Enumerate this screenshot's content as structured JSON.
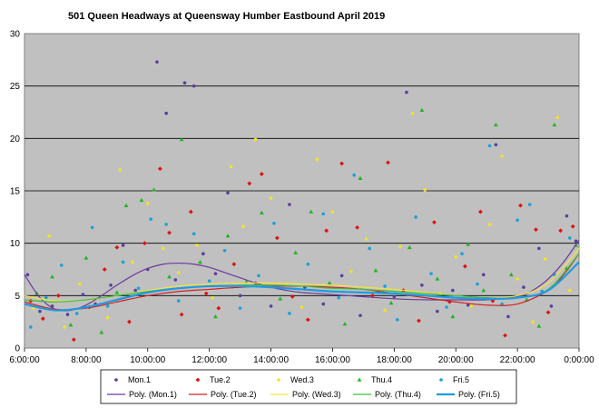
{
  "chart_data": {
    "type": "scatter",
    "title": "501 Queen Headways  at Queensway  Humber  Eastbound  April  2019",
    "xlabel": "",
    "ylabel": "",
    "x_range_hours": [
      6,
      24
    ],
    "x_ticks": [
      "6:00:00",
      "8:00:00",
      "10:00:00",
      "12:00:00",
      "14:00:00",
      "16:00:00",
      "18:00:00",
      "20:00:00",
      "22:00:00",
      "0:00:00"
    ],
    "ylim": [
      0,
      30
    ],
    "y_ticks": [
      0,
      5,
      10,
      15,
      20,
      25,
      30
    ],
    "grid": "horizontal",
    "plot_background": "#c0c0c0",
    "legend_position": "bottom",
    "series": [
      {
        "name": "Mon.1",
        "color": "#5b3d9c",
        "marker": "dot",
        "points": [
          [
            6.1,
            7.0
          ],
          [
            6.5,
            3.5
          ],
          [
            6.9,
            4.0
          ],
          [
            7.4,
            3.2
          ],
          [
            7.9,
            5.1
          ],
          [
            8.3,
            4.2
          ],
          [
            8.8,
            6.0
          ],
          [
            9.2,
            9.8
          ],
          [
            9.6,
            5.5
          ],
          [
            10.0,
            7.5
          ],
          [
            10.3,
            27.3
          ],
          [
            10.6,
            22.4
          ],
          [
            10.9,
            6.5
          ],
          [
            11.2,
            25.3
          ],
          [
            11.5,
            25.0
          ],
          [
            11.8,
            9.0
          ],
          [
            12.2,
            7.1
          ],
          [
            12.6,
            14.8
          ],
          [
            13.0,
            5.0
          ],
          [
            13.5,
            6.2
          ],
          [
            14.0,
            4.0
          ],
          [
            14.6,
            13.7
          ],
          [
            15.1,
            5.8
          ],
          [
            15.7,
            4.2
          ],
          [
            16.3,
            6.9
          ],
          [
            16.9,
            3.1
          ],
          [
            17.5,
            5.3
          ],
          [
            18.0,
            4.9
          ],
          [
            18.4,
            24.4
          ],
          [
            18.9,
            6.0
          ],
          [
            19.4,
            3.5
          ],
          [
            19.9,
            5.5
          ],
          [
            20.4,
            4.1
          ],
          [
            20.9,
            7.0
          ],
          [
            21.3,
            19.4
          ],
          [
            21.7,
            3.0
          ],
          [
            22.2,
            5.8
          ],
          [
            22.7,
            9.5
          ],
          [
            23.1,
            4.0
          ],
          [
            23.6,
            12.6
          ],
          [
            23.9,
            10.2
          ]
        ]
      },
      {
        "name": "Tue.2",
        "color": "#e01010",
        "marker": "diamond",
        "points": [
          [
            6.2,
            4.5
          ],
          [
            6.6,
            2.8
          ],
          [
            7.1,
            5.0
          ],
          [
            7.6,
            0.8
          ],
          [
            8.1,
            3.9
          ],
          [
            8.6,
            7.5
          ],
          [
            9.0,
            9.6
          ],
          [
            9.4,
            2.5
          ],
          [
            9.9,
            10.0
          ],
          [
            10.4,
            17.1
          ],
          [
            10.7,
            11.0
          ],
          [
            11.1,
            3.2
          ],
          [
            11.4,
            13.0
          ],
          [
            11.9,
            5.2
          ],
          [
            12.3,
            3.8
          ],
          [
            12.8,
            8.0
          ],
          [
            13.3,
            15.7
          ],
          [
            13.7,
            16.6
          ],
          [
            14.2,
            10.5
          ],
          [
            14.7,
            4.9
          ],
          [
            15.2,
            2.7
          ],
          [
            15.8,
            11.2
          ],
          [
            16.3,
            17.6
          ],
          [
            16.8,
            11.5
          ],
          [
            17.3,
            5.0
          ],
          [
            17.8,
            17.7
          ],
          [
            18.3,
            5.5
          ],
          [
            18.8,
            2.6
          ],
          [
            19.3,
            12.0
          ],
          [
            19.8,
            4.4
          ],
          [
            20.3,
            7.8
          ],
          [
            20.8,
            13.0
          ],
          [
            21.2,
            4.5
          ],
          [
            21.6,
            1.2
          ],
          [
            22.1,
            13.6
          ],
          [
            22.6,
            11.3
          ],
          [
            23.0,
            3.4
          ],
          [
            23.4,
            11.2
          ],
          [
            23.8,
            11.6
          ]
        ]
      },
      {
        "name": "Wed.3",
        "color": "#f2e22a",
        "marker": "dot",
        "points": [
          [
            6.3,
            3.8
          ],
          [
            6.8,
            10.7
          ],
          [
            7.3,
            2.0
          ],
          [
            7.8,
            6.1
          ],
          [
            8.2,
            4.6
          ],
          [
            8.7,
            2.9
          ],
          [
            9.1,
            17.0
          ],
          [
            9.5,
            8.2
          ],
          [
            10.0,
            13.8
          ],
          [
            10.5,
            9.5
          ],
          [
            11.0,
            7.2
          ],
          [
            11.6,
            9.8
          ],
          [
            12.1,
            4.8
          ],
          [
            12.7,
            17.3
          ],
          [
            13.1,
            11.6
          ],
          [
            13.5,
            19.9
          ],
          [
            14.0,
            14.3
          ],
          [
            14.5,
            6.0
          ],
          [
            15.0,
            3.9
          ],
          [
            15.5,
            18.0
          ],
          [
            16.0,
            13.0
          ],
          [
            16.6,
            7.3
          ],
          [
            17.1,
            10.4
          ],
          [
            17.7,
            3.6
          ],
          [
            18.2,
            9.7
          ],
          [
            18.6,
            22.4
          ],
          [
            19.0,
            15.1
          ],
          [
            19.5,
            5.2
          ],
          [
            20.0,
            8.7
          ],
          [
            20.5,
            4.0
          ],
          [
            21.1,
            11.8
          ],
          [
            21.5,
            18.3
          ],
          [
            22.0,
            6.6
          ],
          [
            22.5,
            2.5
          ],
          [
            22.9,
            8.5
          ],
          [
            23.3,
            22.0
          ],
          [
            23.7,
            5.5
          ]
        ]
      },
      {
        "name": "Thu.4",
        "color": "#22b422",
        "marker": "triangle",
        "points": [
          [
            6.4,
            5.2
          ],
          [
            6.9,
            6.8
          ],
          [
            7.5,
            2.2
          ],
          [
            8.0,
            8.6
          ],
          [
            8.5,
            1.5
          ],
          [
            9.0,
            5.3
          ],
          [
            9.3,
            13.6
          ],
          [
            9.8,
            14.1
          ],
          [
            10.2,
            15.1
          ],
          [
            10.7,
            6.8
          ],
          [
            11.1,
            19.9
          ],
          [
            11.7,
            8.2
          ],
          [
            12.2,
            3.0
          ],
          [
            12.6,
            10.7
          ],
          [
            13.2,
            6.3
          ],
          [
            13.7,
            12.9
          ],
          [
            14.3,
            4.7
          ],
          [
            14.8,
            9.1
          ],
          [
            15.3,
            13.0
          ],
          [
            15.9,
            6.2
          ],
          [
            16.4,
            2.3
          ],
          [
            16.9,
            16.2
          ],
          [
            17.4,
            7.4
          ],
          [
            17.9,
            4.3
          ],
          [
            18.5,
            9.6
          ],
          [
            18.9,
            22.7
          ],
          [
            19.4,
            6.6
          ],
          [
            19.9,
            3.0
          ],
          [
            20.4,
            9.9
          ],
          [
            20.9,
            5.5
          ],
          [
            21.3,
            21.3
          ],
          [
            21.8,
            7.0
          ],
          [
            22.3,
            4.6
          ],
          [
            22.7,
            2.1
          ],
          [
            23.2,
            21.3
          ],
          [
            23.6,
            7.6
          ],
          [
            23.9,
            9.8
          ]
        ]
      },
      {
        "name": "Fri.5",
        "color": "#1ca0d8",
        "marker": "dot",
        "points": [
          [
            6.2,
            2.0
          ],
          [
            6.7,
            4.8
          ],
          [
            7.2,
            7.9
          ],
          [
            7.7,
            3.3
          ],
          [
            8.2,
            11.5
          ],
          [
            8.7,
            4.0
          ],
          [
            9.2,
            8.2
          ],
          [
            9.7,
            5.7
          ],
          [
            10.1,
            12.3
          ],
          [
            10.6,
            11.8
          ],
          [
            11.0,
            4.5
          ],
          [
            11.5,
            10.9
          ],
          [
            12.0,
            6.4
          ],
          [
            12.5,
            9.3
          ],
          [
            13.0,
            3.8
          ],
          [
            13.6,
            6.9
          ],
          [
            14.1,
            11.9
          ],
          [
            14.6,
            3.3
          ],
          [
            15.2,
            8.0
          ],
          [
            15.7,
            12.8
          ],
          [
            16.2,
            4.8
          ],
          [
            16.7,
            16.5
          ],
          [
            17.2,
            9.5
          ],
          [
            17.7,
            5.9
          ],
          [
            18.1,
            2.7
          ],
          [
            18.7,
            12.5
          ],
          [
            19.2,
            7.1
          ],
          [
            19.7,
            3.9
          ],
          [
            20.2,
            9.0
          ],
          [
            20.7,
            6.1
          ],
          [
            21.1,
            19.3
          ],
          [
            21.5,
            4.2
          ],
          [
            22.0,
            12.2
          ],
          [
            22.4,
            13.7
          ],
          [
            22.8,
            5.4
          ],
          [
            23.2,
            7.0
          ],
          [
            23.7,
            10.5
          ]
        ]
      }
    ],
    "trendlines": [
      {
        "name": "Poly. (Mon.1)",
        "color": "#6a3aa0",
        "width": 1.2,
        "points": [
          [
            6.0,
            7.0
          ],
          [
            6.5,
            4.8
          ],
          [
            7.0,
            3.7
          ],
          [
            7.5,
            3.6
          ],
          [
            8.0,
            4.1
          ],
          [
            8.5,
            5.0
          ],
          [
            9.0,
            6.0
          ],
          [
            9.5,
            6.9
          ],
          [
            10.0,
            7.6
          ],
          [
            10.5,
            8.0
          ],
          [
            11.0,
            8.1
          ],
          [
            11.5,
            8.0
          ],
          [
            12.0,
            7.7
          ],
          [
            12.5,
            7.2
          ],
          [
            13.0,
            6.7
          ],
          [
            13.5,
            6.2
          ],
          [
            14.0,
            5.8
          ],
          [
            14.5,
            5.5
          ],
          [
            15.0,
            5.3
          ],
          [
            15.5,
            5.2
          ],
          [
            16.0,
            5.1
          ],
          [
            17.0,
            4.9
          ],
          [
            18.0,
            4.7
          ],
          [
            19.0,
            4.6
          ],
          [
            20.0,
            4.6
          ],
          [
            21.0,
            4.6
          ],
          [
            22.0,
            4.9
          ],
          [
            22.5,
            5.5
          ],
          [
            23.0,
            6.6
          ],
          [
            23.5,
            8.2
          ],
          [
            24.0,
            10.3
          ]
        ]
      },
      {
        "name": "Poly. (Tue.2)",
        "color": "#d42020",
        "width": 1.2,
        "points": [
          [
            6.0,
            4.4
          ],
          [
            7.0,
            3.7
          ],
          [
            8.0,
            3.8
          ],
          [
            9.0,
            4.4
          ],
          [
            10.0,
            5.0
          ],
          [
            11.0,
            5.4
          ],
          [
            12.0,
            5.6
          ],
          [
            13.0,
            5.8
          ],
          [
            14.0,
            5.9
          ],
          [
            15.0,
            5.9
          ],
          [
            16.0,
            5.8
          ],
          [
            17.0,
            5.6
          ],
          [
            18.0,
            5.2
          ],
          [
            19.0,
            4.8
          ],
          [
            20.0,
            4.4
          ],
          [
            21.0,
            4.1
          ],
          [
            22.0,
            4.2
          ],
          [
            23.0,
            5.5
          ],
          [
            23.5,
            7.0
          ],
          [
            24.0,
            9.0
          ]
        ]
      },
      {
        "name": "Poly. (Wed.3)",
        "color": "#f5e43a",
        "width": 1.2,
        "points": [
          [
            6.0,
            5.0
          ],
          [
            7.0,
            4.5
          ],
          [
            8.0,
            4.6
          ],
          [
            9.0,
            5.0
          ],
          [
            10.0,
            5.5
          ],
          [
            11.0,
            5.9
          ],
          [
            12.0,
            6.1
          ],
          [
            13.0,
            6.2
          ],
          [
            14.0,
            6.2
          ],
          [
            15.0,
            6.1
          ],
          [
            16.0,
            6.0
          ],
          [
            17.0,
            5.8
          ],
          [
            18.0,
            5.6
          ],
          [
            19.0,
            5.3
          ],
          [
            20.0,
            5.0
          ],
          [
            21.0,
            4.8
          ],
          [
            22.0,
            5.0
          ],
          [
            23.0,
            6.2
          ],
          [
            24.0,
            9.5
          ]
        ]
      },
      {
        "name": "Poly. (Thu.4)",
        "color": "#3cc03c",
        "width": 1.2,
        "points": [
          [
            6.0,
            4.6
          ],
          [
            7.0,
            4.4
          ],
          [
            8.0,
            4.6
          ],
          [
            9.0,
            5.0
          ],
          [
            10.0,
            5.4
          ],
          [
            11.0,
            5.7
          ],
          [
            12.0,
            5.9
          ],
          [
            13.0,
            6.0
          ],
          [
            14.0,
            6.0
          ],
          [
            15.0,
            5.9
          ],
          [
            16.0,
            5.7
          ],
          [
            17.0,
            5.6
          ],
          [
            18.0,
            5.4
          ],
          [
            19.0,
            5.2
          ],
          [
            20.0,
            5.0
          ],
          [
            21.0,
            4.8
          ],
          [
            22.0,
            4.8
          ],
          [
            23.0,
            5.6
          ],
          [
            24.0,
            9.0
          ]
        ]
      },
      {
        "name": "Poly. (Fri.5)",
        "color": "#1e9be0",
        "width": 2.2,
        "points": [
          [
            6.0,
            4.2
          ],
          [
            7.0,
            3.6
          ],
          [
            8.0,
            3.9
          ],
          [
            9.0,
            4.6
          ],
          [
            10.0,
            5.3
          ],
          [
            11.0,
            5.7
          ],
          [
            12.0,
            5.9
          ],
          [
            13.0,
            5.9
          ],
          [
            14.0,
            5.8
          ],
          [
            15.0,
            5.6
          ],
          [
            16.0,
            5.4
          ],
          [
            17.0,
            5.3
          ],
          [
            18.0,
            5.2
          ],
          [
            19.0,
            5.0
          ],
          [
            20.0,
            4.8
          ],
          [
            21.0,
            4.7
          ],
          [
            22.0,
            4.8
          ],
          [
            23.0,
            5.5
          ],
          [
            24.0,
            8.2
          ]
        ]
      }
    ]
  }
}
